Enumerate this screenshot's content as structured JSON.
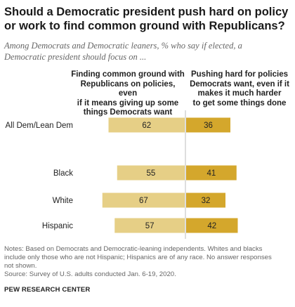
{
  "title": "Should a Democratic president push hard on policy or work to find common ground with Republicans?",
  "subtitle": "Among Democrats and Democratic leaners, % who say if elected, a Democratic president should focus on ...",
  "column_headers": {
    "left": [
      "Finding common ground with",
      "Republicans on policies, even",
      "if it means giving up some",
      "things Democrats want"
    ],
    "right": [
      "Pushing hard for policies",
      "Democrats want, even if it",
      "makes it much harder",
      "to get some things done"
    ]
  },
  "notes": [
    "Notes: Based on Democrats and Democratic-leaning independents. Whites and blacks",
    "include only those who are not Hispanic; Hispanics are of any race. No answer responses",
    "not shown.",
    "Source: Survey of U.S. adults conducted Jan. 6-19, 2020."
  ],
  "brand": "PEW RESEARCH CENTER",
  "colors": {
    "common_ground": "#e6cf86",
    "push_hard": "#d4a72c",
    "divider": "#bdbdbd"
  },
  "chart_data": {
    "type": "bar",
    "orientation": "horizontal-diverging",
    "categories": [
      "All Dem/Lean Dem",
      "Black",
      "White",
      "Hispanic"
    ],
    "series": [
      {
        "name": "Finding common ground with Republicans on policies, even if it means giving up some things Democrats want",
        "values": [
          62,
          55,
          67,
          57
        ]
      },
      {
        "name": "Pushing hard for policies Democrats want, even if it makes it much harder to get some things done",
        "values": [
          36,
          41,
          32,
          42
        ]
      }
    ]
  }
}
